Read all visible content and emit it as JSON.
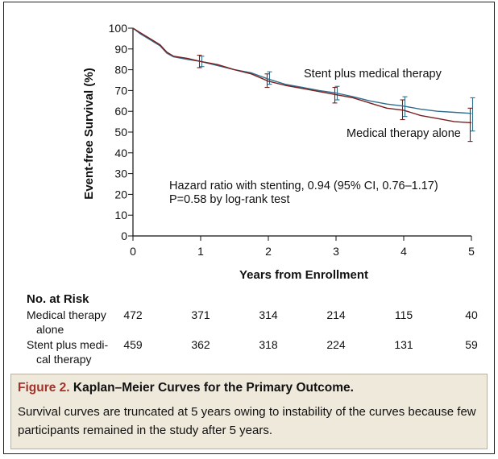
{
  "chart_data": {
    "type": "line",
    "title": "",
    "xlabel": "Years from Enrollment",
    "ylabel": "Event-free Survival (%)",
    "xlim": [
      0,
      5
    ],
    "ylim": [
      0,
      100
    ],
    "x_ticks": [
      0,
      1,
      2,
      3,
      4,
      5
    ],
    "y_ticks": [
      0,
      10,
      20,
      30,
      40,
      50,
      60,
      70,
      80,
      90,
      100
    ],
    "series": [
      {
        "name": "Stent plus medical therapy",
        "color": "#2e6e8e",
        "points": [
          [
            0,
            100
          ],
          [
            0.1,
            97.5
          ],
          [
            0.25,
            94.5
          ],
          [
            0.4,
            91.5
          ],
          [
            0.5,
            88
          ],
          [
            0.6,
            86.2
          ],
          [
            0.8,
            85
          ],
          [
            1.0,
            84
          ],
          [
            1.25,
            82
          ],
          [
            1.5,
            80
          ],
          [
            1.75,
            78.5
          ],
          [
            2.0,
            75.5
          ],
          [
            2.25,
            73
          ],
          [
            2.5,
            71.5
          ],
          [
            2.75,
            70
          ],
          [
            3.0,
            68.8
          ],
          [
            3.25,
            67
          ],
          [
            3.5,
            65
          ],
          [
            3.75,
            63.5
          ],
          [
            4.0,
            62.5
          ],
          [
            4.25,
            61
          ],
          [
            4.5,
            60
          ],
          [
            4.75,
            59.5
          ],
          [
            5.0,
            59
          ]
        ],
        "ci_bars": [
          {
            "x": 1,
            "low": 81.5,
            "high": 86.5
          },
          {
            "x": 2,
            "low": 73,
            "high": 79
          },
          {
            "x": 3,
            "low": 65.5,
            "high": 72
          },
          {
            "x": 4,
            "low": 57.5,
            "high": 67
          },
          {
            "x": 5,
            "low": 50.5,
            "high": 66.5
          }
        ]
      },
      {
        "name": "Medical therapy alone",
        "color": "#7a1f1f",
        "points": [
          [
            0,
            100
          ],
          [
            0.1,
            98
          ],
          [
            0.25,
            95
          ],
          [
            0.4,
            92
          ],
          [
            0.5,
            88.5
          ],
          [
            0.6,
            86.5
          ],
          [
            0.8,
            85.5
          ],
          [
            1.0,
            84
          ],
          [
            1.25,
            82.5
          ],
          [
            1.5,
            80
          ],
          [
            1.75,
            78
          ],
          [
            2.0,
            74.5
          ],
          [
            2.25,
            72.5
          ],
          [
            2.5,
            71
          ],
          [
            2.75,
            69.5
          ],
          [
            3.0,
            68
          ],
          [
            3.25,
            66.5
          ],
          [
            3.5,
            64
          ],
          [
            3.75,
            61.5
          ],
          [
            4.0,
            60.5
          ],
          [
            4.25,
            58
          ],
          [
            4.5,
            56.5
          ],
          [
            4.75,
            55
          ],
          [
            5.0,
            54.5
          ]
        ],
        "ci_bars": [
          {
            "x": 1,
            "low": 81,
            "high": 87
          },
          {
            "x": 2,
            "low": 71.5,
            "high": 78
          },
          {
            "x": 3,
            "low": 64,
            "high": 71.5
          },
          {
            "x": 4,
            "low": 56,
            "high": 65.5
          },
          {
            "x": 5,
            "low": 45.5,
            "high": 61.5
          }
        ]
      }
    ],
    "annotations": [
      "Hazard ratio with stenting, 0.94 (95% CI, 0.76–1.17)",
      "P=0.58 by log-rank test"
    ]
  },
  "risk_table": {
    "title": "No. at Risk",
    "rows": [
      {
        "label_line1": "Medical therapy",
        "label_line2": "alone",
        "values": [
          472,
          371,
          314,
          214,
          115,
          40
        ]
      },
      {
        "label_line1": "Stent plus medi-",
        "label_line2": "cal therapy",
        "values": [
          459,
          362,
          318,
          224,
          131,
          59
        ]
      }
    ]
  },
  "caption": {
    "figure_label": "Figure 2.",
    "title": "Kaplan–Meier Curves for the Primary Outcome.",
    "text": "Survival curves are truncated at 5 years owing to instability of the curves because few participants remained in the study after 5 years."
  }
}
